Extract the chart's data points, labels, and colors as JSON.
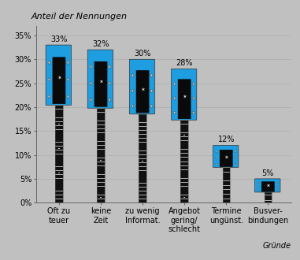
{
  "categories": [
    "Oft zu\nteuer",
    "keine\nZeit",
    "zu wenig\nInformat.",
    "Angebot\ngering/\nschlecht",
    "Termine\nungünst.",
    "Busver-\nbindungen"
  ],
  "values": [
    33,
    32,
    30,
    28,
    12,
    5
  ],
  "bar_color": "#1E9EE0",
  "neck_dark": "#111111",
  "neck_light": "#cccccc",
  "background_color": "#c0c0c0",
  "title": "Anteil der Nennungen",
  "xlabel": "Gründe",
  "ylim": [
    0,
    37
  ],
  "yticks": [
    0,
    5,
    10,
    15,
    20,
    25,
    30,
    35
  ],
  "yticklabels": [
    "0%",
    "5%",
    "10%",
    "15%",
    "20%",
    "25%",
    "30%",
    "35%"
  ],
  "value_labels": [
    "33%",
    "32%",
    "30%",
    "28%",
    "12%",
    "5%"
  ],
  "title_fontsize": 8,
  "label_fontsize": 7,
  "tick_fontsize": 7
}
